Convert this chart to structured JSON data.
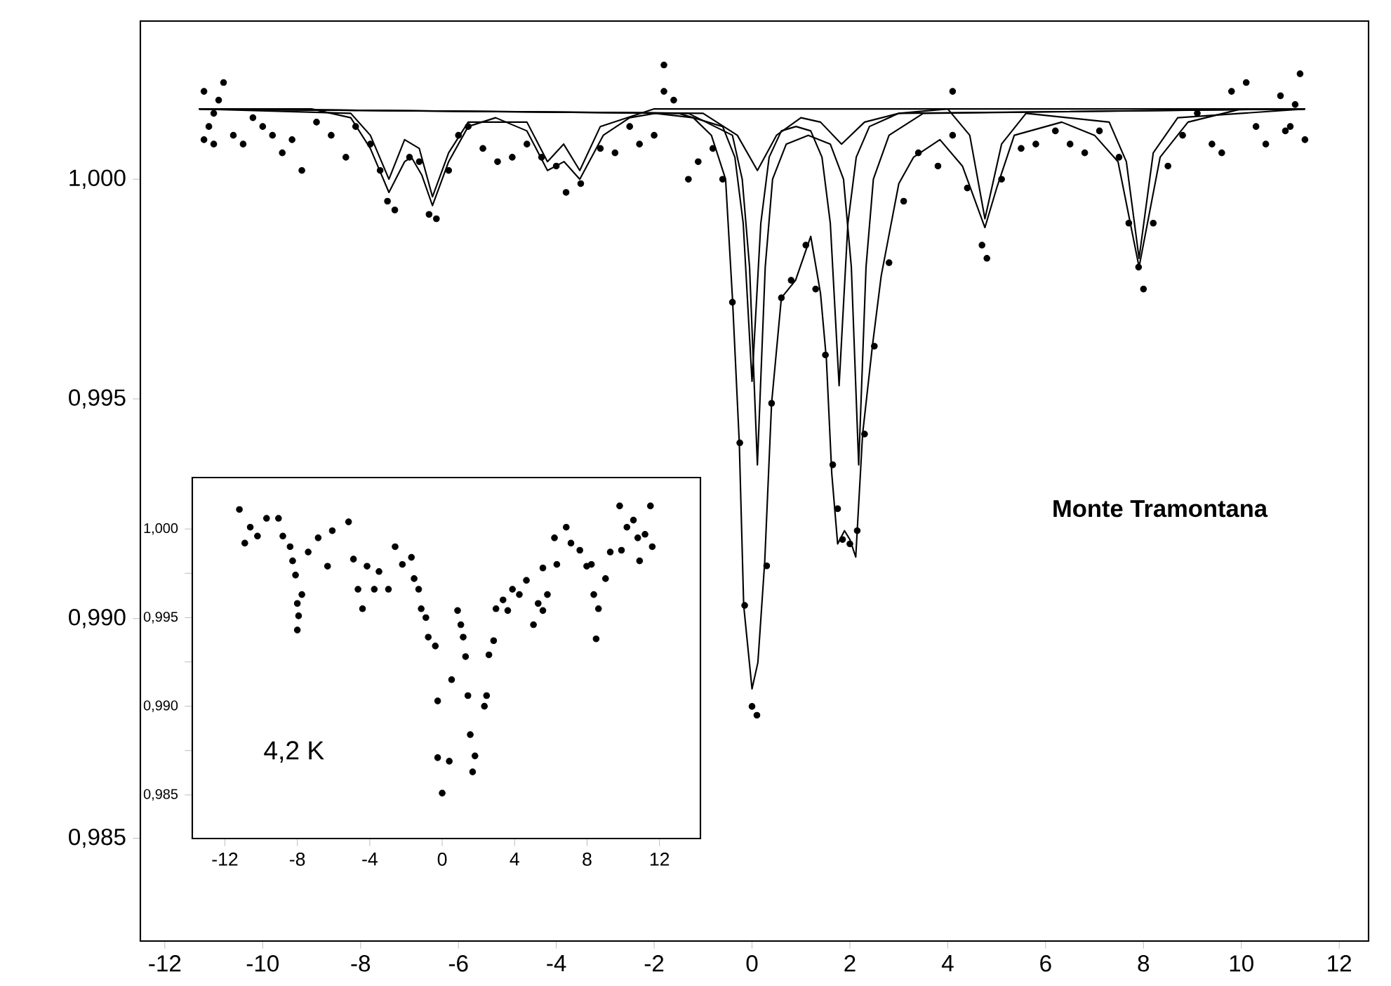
{
  "chart_data": [
    {
      "type": "scatter",
      "xlim": [
        -12.5,
        12.6
      ],
      "ylim": [
        0.98266,
        1.0036
      ],
      "xticks": [
        -12,
        -10,
        -8,
        -6,
        -4,
        -2,
        0,
        2,
        4,
        6,
        8,
        10,
        12
      ],
      "yticks": [
        {
          "value": 0.985,
          "label": "0,985"
        },
        {
          "value": 0.99,
          "label": "0,990"
        },
        {
          "value": 0.995,
          "label": "0,995"
        },
        {
          "value": 1.0,
          "label": "1,000"
        }
      ],
      "annotations": [
        "Monte Tramontana"
      ],
      "series": [
        {
          "marker": "circle",
          "color": "#000000",
          "x": [
            -11.2,
            -11.1,
            -11.0,
            -11.2,
            -10.9,
            -10.8,
            -11.0,
            -10.6,
            -10.4,
            -10.2,
            -10.0,
            -9.8,
            -9.6,
            -9.4,
            -9.2,
            -8.9,
            -8.6,
            -8.3,
            -8.1,
            -7.8,
            -7.6,
            -7.45,
            -7.3,
            -7.0,
            -6.8,
            -6.6,
            -6.45,
            -6.2,
            -6.0,
            -5.8,
            -5.5,
            -5.2,
            -4.9,
            -4.6,
            -4.3,
            -4.0,
            -3.8,
            -3.5,
            -3.1,
            -2.8,
            -2.5,
            -2.3,
            -2.0,
            -1.8,
            -1.6,
            -1.3,
            -1.1,
            -0.8,
            -0.6,
            -0.4,
            -0.25,
            -0.15,
            0.0,
            0.1,
            0.3,
            0.4,
            0.6,
            0.8,
            1.1,
            1.3,
            1.5,
            1.65,
            1.75,
            1.85,
            2.0,
            2.15,
            2.3,
            2.5,
            2.8,
            3.1,
            3.4,
            3.8,
            4.1,
            4.4,
            4.7,
            4.8,
            5.1,
            5.5,
            5.8,
            6.2,
            6.5,
            6.8,
            7.1,
            7.5,
            7.7,
            7.9,
            8.0,
            8.2,
            8.5,
            8.8,
            9.1,
            9.4,
            9.6,
            9.8,
            10.1,
            10.3,
            10.5,
            10.8,
            11.0,
            11.2,
            11.3,
            11.1,
            10.9,
            -1.8,
            4.1
          ],
          "values": [
            1.002,
            1.0012,
            1.0008,
            1.0009,
            1.0018,
            1.0022,
            1.0015,
            1.001,
            1.0008,
            1.0014,
            1.0012,
            1.001,
            1.0006,
            1.0009,
            1.0002,
            1.0013,
            1.001,
            1.0005,
            1.0012,
            1.0008,
            1.0002,
            0.9995,
            0.9993,
            1.0005,
            1.0004,
            0.9992,
            0.9991,
            1.0002,
            1.001,
            1.0012,
            1.0007,
            1.0004,
            1.0005,
            1.0008,
            1.0005,
            1.0003,
            0.9997,
            0.9999,
            1.0007,
            1.0006,
            1.0012,
            1.0008,
            1.001,
            1.002,
            1.0018,
            1.0,
            1.0004,
            1.0007,
            1.0,
            0.9972,
            0.994,
            0.9903,
            0.988,
            0.9878,
            0.9912,
            0.9949,
            0.9973,
            0.9977,
            0.9985,
            0.9975,
            0.996,
            0.9935,
            0.9925,
            0.9918,
            0.9917,
            0.992,
            0.9942,
            0.9962,
            0.9981,
            0.9995,
            1.0006,
            1.0003,
            1.001,
            0.9998,
            0.9985,
            0.9982,
            1.0,
            1.0007,
            1.0008,
            1.0011,
            1.0008,
            1.0006,
            1.0011,
            1.0005,
            0.999,
            0.998,
            0.9975,
            0.999,
            1.0003,
            1.001,
            1.0015,
            1.0008,
            1.0006,
            1.002,
            1.0022,
            1.0012,
            1.0008,
            1.0019,
            1.0012,
            1.0024,
            1.0009,
            1.0017,
            1.0011,
            1.0026,
            1.002
          ]
        },
        {
          "type": "line",
          "color": "#000000",
          "x": [
            -11.3,
            -9,
            -8.2,
            -7.8,
            -7.42,
            -7.1,
            -6.96,
            -6.75,
            -6.53,
            -6.2,
            -5.8,
            -5.24,
            -4.6,
            -4.18,
            -3.84,
            -3.52,
            -3.04,
            -2.5,
            -1.98,
            -1.2,
            -0.83,
            -0.54,
            -0.4,
            -0.26,
            -0.17,
            0.0,
            0.12,
            0.26,
            0.4,
            0.6,
            0.89,
            1.2,
            1.4,
            1.52,
            1.63,
            1.75,
            1.89,
            2.0,
            2.12,
            2.26,
            2.46,
            2.64,
            3.0,
            3.3,
            3.84,
            4.3,
            4.76,
            5.0,
            5.36,
            6.33,
            7.0,
            7.48,
            7.91,
            8.34,
            8.91,
            10,
            11.3
          ],
          "values": [
            1.0016,
            1.0016,
            1.0014,
            1.0007,
            0.9997,
            1.0004,
            1.0005,
            1.0001,
            0.9994,
            1.0004,
            1.0012,
            1.0014,
            1.0011,
            1.0002,
            1.0004,
            1.0,
            1.001,
            1.0014,
            1.0015,
            1.0014,
            1.001,
            1.0,
            0.9973,
            0.994,
            0.9903,
            0.9884,
            0.989,
            0.9913,
            0.9949,
            0.9973,
            0.9977,
            0.9987,
            0.9974,
            0.9959,
            0.9933,
            0.9917,
            0.992,
            0.9918,
            0.9914,
            0.9942,
            0.9962,
            0.9978,
            0.9999,
            1.0005,
            1.0009,
            1.0003,
            0.9989,
            0.9998,
            1.001,
            1.0013,
            1.001,
            1.0004,
            0.998,
            1.0005,
            1.0013,
            1.0016,
            1.0016
          ]
        },
        {
          "type": "line",
          "color": "#000000",
          "x": [
            -11.3,
            -1.5,
            -0.6,
            -0.35,
            -0.18,
            0.0,
            0.18,
            0.35,
            0.6,
            0.9,
            1.2,
            1.43,
            1.6,
            1.78,
            1.96,
            2.13,
            2.4,
            3,
            4,
            11.3
          ],
          "values": [
            1.0016,
            1.0015,
            1.0012,
            1.0005,
            0.999,
            0.9954,
            0.999,
            1.0005,
            1.0011,
            1.0012,
            1.0011,
            1.0005,
            0.999,
            0.9953,
            0.999,
            1.0005,
            1.0012,
            1.0015,
            1.0016,
            1.0016
          ]
        },
        {
          "type": "line",
          "color": "#000000",
          "x": [
            -11.3,
            -1.3,
            -0.4,
            -0.2,
            -0.05,
            0.11,
            0.27,
            0.42,
            0.7,
            1.15,
            1.6,
            1.87,
            2.03,
            2.18,
            2.33,
            2.48,
            2.8,
            3.5,
            11.3
          ],
          "values": [
            1.0016,
            1.0015,
            1.001,
            1.0,
            0.998,
            0.9935,
            0.998,
            1.0,
            1.0008,
            1.001,
            1.0008,
            1.0,
            0.998,
            0.9935,
            0.998,
            1.0,
            1.001,
            1.0015,
            1.0016
          ]
        },
        {
          "type": "line",
          "color": "#000000",
          "x": [
            -11.3,
            -1,
            -0.3,
            0.11,
            0.5,
            1.0,
            1.4,
            1.83,
            2.3,
            3,
            11.3
          ],
          "values": [
            1.0016,
            1.0015,
            1.001,
            1.0002,
            1.001,
            1.0014,
            1.0013,
            1.0008,
            1.0013,
            1.0015,
            1.0016
          ]
        },
        {
          "type": "line",
          "color": "#000000",
          "x": [
            -11.3,
            -8.2,
            -7.8,
            -7.42,
            -7.1,
            -6.8,
            -6.53,
            -6.2,
            -5.8,
            -4.6,
            -4.18,
            -3.85,
            -3.52,
            -3.1,
            -2,
            4,
            4.45,
            4.76,
            5.1,
            5.6,
            7.3,
            7.65,
            7.91,
            8.2,
            8.7,
            11.3
          ],
          "values": [
            1.0016,
            1.0015,
            1.001,
            1.0,
            1.0009,
            1.0007,
            0.9996,
            1.0006,
            1.0013,
            1.0013,
            1.0004,
            1.0008,
            1.0002,
            1.0012,
            1.0016,
            1.0016,
            1.001,
            0.9991,
            1.0008,
            1.0015,
            1.0013,
            1.0004,
            0.9982,
            1.0006,
            1.0014,
            1.0016
          ]
        }
      ]
    },
    {
      "type": "scatter",
      "xlim": [
        -13.8,
        14.26
      ],
      "ylim": [
        0.98254,
        1.0029
      ],
      "xticks": [
        -12,
        -8,
        -4,
        0,
        4,
        8,
        12
      ],
      "yticks": [
        {
          "value": 0.985,
          "label": "0,985"
        },
        {
          "value": 0.9875,
          "label": null
        },
        {
          "value": 0.99,
          "label": "0,990"
        },
        {
          "value": 0.9925,
          "label": null
        },
        {
          "value": 0.995,
          "label": "0,995"
        },
        {
          "value": 0.9975,
          "label": null
        },
        {
          "value": 1.0,
          "label": "1,000"
        }
      ],
      "annotations": [
        "4,2 K"
      ],
      "series": [
        {
          "marker": "circle",
          "color": "#000000",
          "x": [
            -11.2,
            -10.9,
            -10.6,
            -10.2,
            -9.7,
            -9.04,
            -8.8,
            -8.4,
            -8.26,
            -8.1,
            -7.75,
            -8.0,
            -7.93,
            -8.0,
            -7.4,
            -6.85,
            -6.33,
            -6.07,
            -5.17,
            -4.9,
            -4.65,
            -4.4,
            -4.15,
            -3.75,
            -3.49,
            -2.97,
            -2.6,
            -2.2,
            -1.7,
            -1.55,
            -1.3,
            -1.16,
            -0.9,
            -0.77,
            -0.38,
            -0.25,
            -0.25,
            0.0,
            0.39,
            0.52,
            0.85,
            1.03,
            1.16,
            1.29,
            1.42,
            1.55,
            1.81,
            1.68,
            2.33,
            2.45,
            2.58,
            2.84,
            2.97,
            3.36,
            3.62,
            3.88,
            4.26,
            4.65,
            5.04,
            5.3,
            5.56,
            5.81,
            5.56,
            6.33,
            6.2,
            6.85,
            7.11,
            7.6,
            7.98,
            8.24,
            8.37,
            8.63,
            8.5,
            9.02,
            9.28,
            9.8,
            9.9,
            10.2,
            10.56,
            10.9,
            11.2,
            11.5,
            11.6,
            10.8
          ],
          "values": [
            1.0011,
            0.9992,
            1.0001,
            0.9996,
            1.0006,
            1.0006,
            0.9996,
            0.999,
            0.9982,
            0.9974,
            0.9963,
            0.9958,
            0.9951,
            0.9943,
            0.9987,
            0.9995,
            0.9979,
            0.9999,
            1.0004,
            0.9983,
            0.9966,
            0.9955,
            0.9979,
            0.9966,
            0.9976,
            0.9966,
            0.999,
            0.998,
            0.9984,
            0.9972,
            0.9966,
            0.9955,
            0.995,
            0.9939,
            0.9934,
            0.9903,
            0.9871,
            0.9851,
            0.9869,
            0.9915,
            0.9954,
            0.9946,
            0.9939,
            0.9928,
            0.9906,
            0.9884,
            0.9872,
            0.9863,
            0.99,
            0.9906,
            0.9929,
            0.9937,
            0.9955,
            0.996,
            0.9954,
            0.9966,
            0.9963,
            0.9971,
            0.9946,
            0.9958,
            0.9954,
            0.9963,
            0.9978,
            0.998,
            0.9995,
            1.0001,
            0.9992,
            0.9988,
            0.9979,
            0.998,
            0.9963,
            0.9955,
            0.9938,
            0.9972,
            0.9987,
            1.0013,
            0.9988,
            1.0001,
            1.0005,
            0.9982,
            0.9997,
            1.0013,
            0.999,
            0.9995
          ]
        }
      ]
    }
  ]
}
